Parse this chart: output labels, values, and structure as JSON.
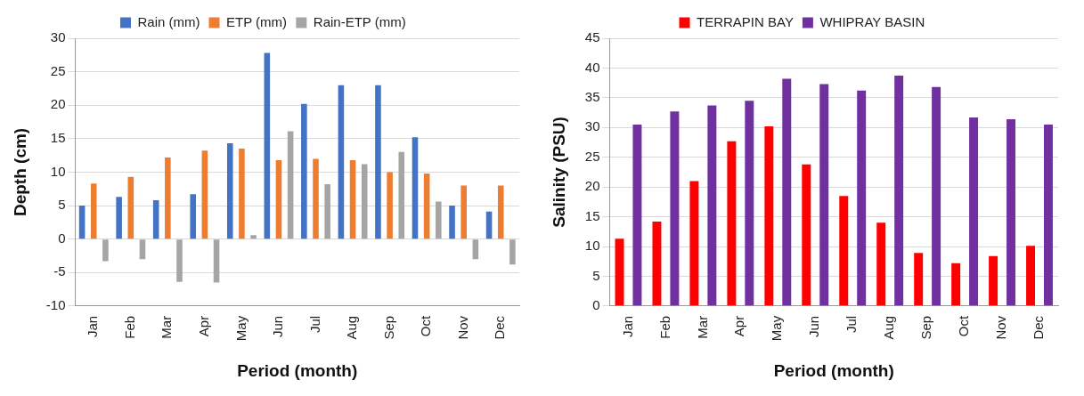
{
  "chart_data": [
    {
      "type": "bar",
      "categories": [
        "Jan",
        "Feb",
        "Mar",
        "Apr",
        "May",
        "Jun",
        "Jul",
        "Aug",
        "Sep",
        "Oct",
        "Nov",
        "Dec"
      ],
      "xlabel": "Period (month)",
      "ylabel": "Depth (cm)",
      "ylim": [
        -10,
        30
      ],
      "yticks": [
        -10,
        -5,
        0,
        5,
        10,
        15,
        20,
        25,
        30
      ],
      "grid": "y",
      "legend": "top",
      "series": [
        {
          "name": "Rain (mm)",
          "color": "#4472c4",
          "values": [
            5.0,
            6.3,
            5.8,
            6.7,
            14.3,
            27.8,
            20.2,
            23.0,
            23.0,
            15.2,
            5.0,
            4.1
          ]
        },
        {
          "name": "ETP (mm)",
          "color": "#ed7d31",
          "values": [
            8.3,
            9.3,
            12.2,
            13.2,
            13.5,
            11.8,
            12.0,
            11.8,
            10.0,
            9.8,
            8.0,
            8.0
          ]
        },
        {
          "name": "Rain-ETP (mm)",
          "color": "#a5a5a5",
          "values": [
            -3.3,
            -3.0,
            -6.4,
            -6.5,
            0.6,
            16.1,
            8.2,
            11.2,
            13.0,
            5.6,
            -3.0,
            -3.8
          ]
        }
      ]
    },
    {
      "type": "bar",
      "categories": [
        "Jan",
        "Feb",
        "Mar",
        "Apr",
        "May",
        "Jun",
        "Jul",
        "Aug",
        "Sep",
        "Oct",
        "Nov",
        "Dec"
      ],
      "xlabel": "Period (month)",
      "ylabel": "Salinity (PSU)",
      "ylim": [
        0,
        45
      ],
      "yticks": [
        0,
        5,
        10,
        15,
        20,
        25,
        30,
        35,
        40,
        45
      ],
      "grid": "y",
      "legend": "top",
      "series": [
        {
          "name": "TERRAPIN BAY",
          "color": "#ff0000",
          "values": [
            11.3,
            14.2,
            21.0,
            27.7,
            30.2,
            23.8,
            18.5,
            14.0,
            8.9,
            7.2,
            8.4,
            10.1
          ]
        },
        {
          "name": "WHIPRAY BASIN",
          "color": "#7030a0",
          "values": [
            30.5,
            32.7,
            33.7,
            34.5,
            38.2,
            37.3,
            36.2,
            38.7,
            36.8,
            31.7,
            31.4,
            30.5
          ]
        }
      ]
    }
  ]
}
